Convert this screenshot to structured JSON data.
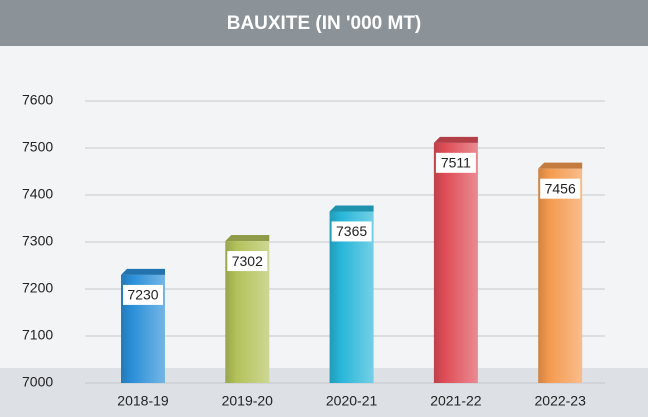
{
  "chart_data": {
    "type": "bar",
    "title": "BAUXITE (IN '000 MT)",
    "categories": [
      "2018-19",
      "2019-20",
      "2020-21",
      "2021-22",
      "2022-23"
    ],
    "values": [
      7230,
      7302,
      7365,
      7511,
      7456
    ],
    "colors": [
      "#2a8fd8",
      "#b3c25a",
      "#27b6d8",
      "#df4d57",
      "#f49a4e"
    ],
    "ylim": [
      7000,
      7600
    ],
    "yticks": [
      7000,
      7100,
      7200,
      7300,
      7400,
      7500,
      7600
    ],
    "grid": true
  }
}
